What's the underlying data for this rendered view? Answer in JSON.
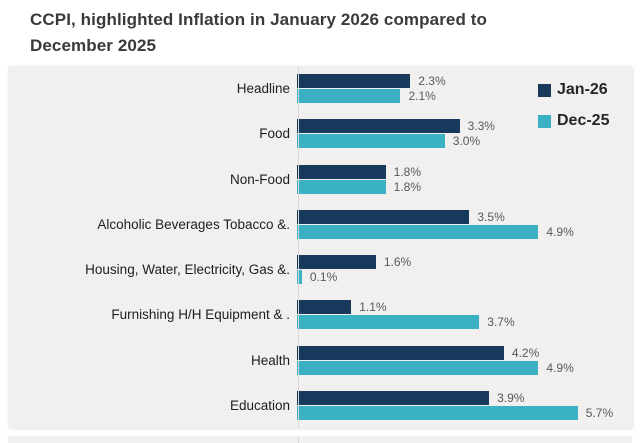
{
  "title": {
    "line1": "CCPI, highlighted Inflation in January 2026 compared to",
    "line2": "December 2025"
  },
  "legend": [
    {
      "label": "Jan-26",
      "color": "#17395c"
    },
    {
      "label": "Dec-25",
      "color": "#3ab2c4"
    }
  ],
  "chart_data": {
    "type": "bar",
    "orientation": "horizontal",
    "title": "CCPI, highlighted Inflation in January 2026 compared to December 2025",
    "categories": [
      "Headline",
      "Food",
      "Non-Food",
      "Alcoholic Beverages Tobacco &.",
      "Housing, Water, Electricity, Gas &.",
      "Furnishing H/H Equipment & .",
      "Health",
      "Education"
    ],
    "series": [
      {
        "name": "Jan-26",
        "color": "#17395c",
        "values": [
          2.3,
          3.3,
          1.8,
          3.5,
          1.6,
          1.1,
          4.2,
          3.9
        ],
        "value_labels": [
          "2.3%",
          "3.3%",
          "1.8%",
          "3.5%",
          "1.6%",
          "1.1%",
          "4.2%",
          "3.9%"
        ]
      },
      {
        "name": "Dec-25",
        "color": "#3ab2c4",
        "values": [
          2.1,
          3.0,
          1.8,
          4.9,
          0.1,
          3.7,
          4.9,
          5.7
        ],
        "value_labels": [
          "2.1%",
          "3.0%",
          "1.8%",
          "4.9%",
          "0.1%",
          "3.7%",
          "4.9%",
          "5.7%"
        ]
      }
    ],
    "xlim": [
      0,
      6.8
    ],
    "value_unit": "%",
    "grid": false,
    "legend_position": "top-right",
    "plot_background": "#f1f0ef",
    "value_label_color": "#595959"
  }
}
